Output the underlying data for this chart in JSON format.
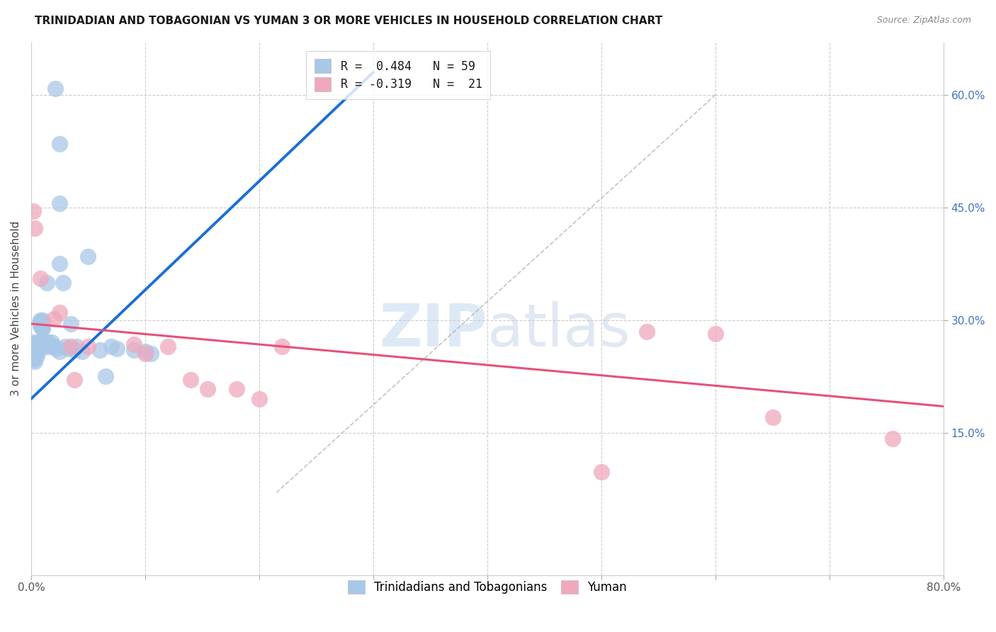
{
  "title": "TRINIDADIAN AND TOBAGONIAN VS YUMAN 3 OR MORE VEHICLES IN HOUSEHOLD CORRELATION CHART",
  "source": "Source: ZipAtlas.com",
  "ylabel": "3 or more Vehicles in Household",
  "xlim": [
    0.0,
    0.8
  ],
  "ylim": [
    -0.04,
    0.67
  ],
  "xtick_positions": [
    0.0,
    0.1,
    0.2,
    0.3,
    0.4,
    0.5,
    0.6,
    0.7,
    0.8
  ],
  "xticklabels": [
    "0.0%",
    "",
    "",
    "",
    "",
    "",
    "",
    "",
    "80.0%"
  ],
  "ytick_positions": [
    0.15,
    0.3,
    0.45,
    0.6
  ],
  "yticklabels": [
    "15.0%",
    "30.0%",
    "45.0%",
    "60.0%"
  ],
  "blue_color": "#a8c8e8",
  "pink_color": "#f0a8bc",
  "blue_line_color": "#1a6fd4",
  "pink_line_color": "#e8507a",
  "legend_blue_label": "R =  0.484   N = 59",
  "legend_pink_label": "R = -0.319   N =  21",
  "blue_line_x0": 0.0,
  "blue_line_y0": 0.195,
  "blue_line_x1": 0.3,
  "blue_line_y1": 0.63,
  "pink_line_x0": 0.0,
  "pink_line_y0": 0.295,
  "pink_line_x1": 0.8,
  "pink_line_y1": 0.185,
  "dashed_line_x0": 0.215,
  "dashed_line_y0": 0.07,
  "dashed_line_x1": 0.6,
  "dashed_line_y1": 0.6,
  "blue_scatter_x": [
    0.021,
    0.025,
    0.025,
    0.025,
    0.028,
    0.002,
    0.002,
    0.003,
    0.003,
    0.003,
    0.003,
    0.003,
    0.003,
    0.003,
    0.004,
    0.004,
    0.005,
    0.005,
    0.005,
    0.005,
    0.005,
    0.005,
    0.006,
    0.006,
    0.007,
    0.007,
    0.008,
    0.008,
    0.008,
    0.008,
    0.01,
    0.01,
    0.01,
    0.01,
    0.01,
    0.01,
    0.012,
    0.012,
    0.014,
    0.015,
    0.015,
    0.018,
    0.02,
    0.022,
    0.025,
    0.03,
    0.032,
    0.035,
    0.038,
    0.04,
    0.045,
    0.05,
    0.06,
    0.065,
    0.07,
    0.075,
    0.09,
    0.1,
    0.105
  ],
  "blue_scatter_y": [
    0.608,
    0.535,
    0.455,
    0.375,
    0.35,
    0.27,
    0.268,
    0.262,
    0.258,
    0.255,
    0.252,
    0.25,
    0.248,
    0.245,
    0.268,
    0.265,
    0.268,
    0.265,
    0.262,
    0.258,
    0.255,
    0.252,
    0.27,
    0.265,
    0.27,
    0.265,
    0.3,
    0.298,
    0.295,
    0.292,
    0.3,
    0.298,
    0.295,
    0.292,
    0.29,
    0.288,
    0.27,
    0.265,
    0.35,
    0.27,
    0.265,
    0.27,
    0.265,
    0.262,
    0.258,
    0.265,
    0.262,
    0.295,
    0.26,
    0.265,
    0.258,
    0.385,
    0.26,
    0.225,
    0.265,
    0.262,
    0.26,
    0.258,
    0.255
  ],
  "pink_scatter_x": [
    0.002,
    0.003,
    0.008,
    0.02,
    0.025,
    0.035,
    0.038,
    0.05,
    0.09,
    0.1,
    0.12,
    0.14,
    0.155,
    0.18,
    0.2,
    0.22,
    0.5,
    0.54,
    0.6,
    0.65,
    0.755
  ],
  "pink_scatter_y": [
    0.445,
    0.422,
    0.355,
    0.302,
    0.31,
    0.265,
    0.22,
    0.265,
    0.268,
    0.255,
    0.265,
    0.22,
    0.208,
    0.208,
    0.195,
    0.265,
    0.098,
    0.285,
    0.282,
    0.17,
    0.142
  ],
  "watermark_zip": "ZIP",
  "watermark_atlas": "atlas",
  "figsize": [
    14.06,
    8.92
  ],
  "dpi": 100
}
